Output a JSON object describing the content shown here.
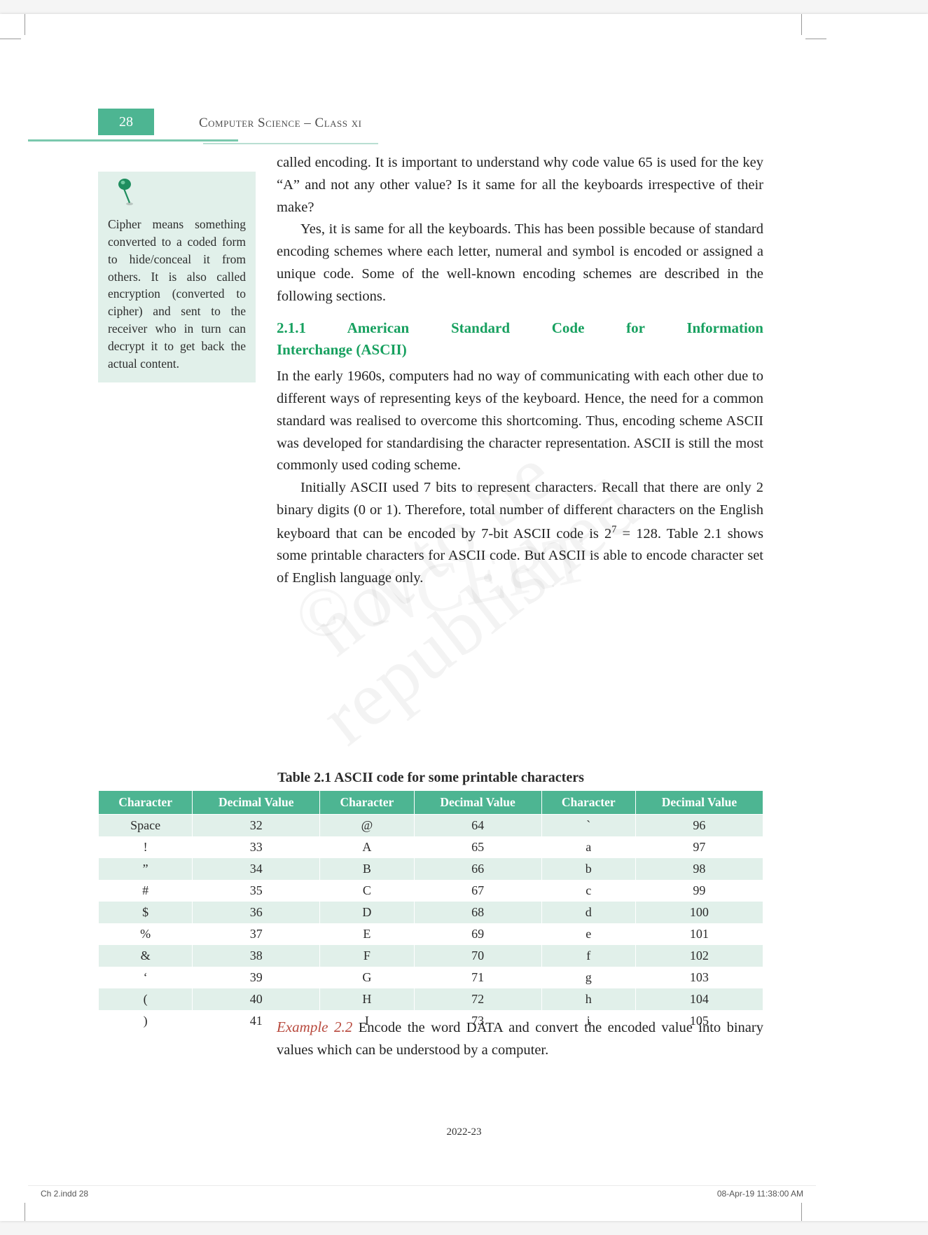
{
  "header": {
    "page_number": "28",
    "running_title": "Computer Science – Class xi"
  },
  "sidebar": {
    "text": "Cipher means something converted to a coded form to hide/conceal it from others. It is also called encryption (converted to cipher) and sent to the receiver who in turn can decrypt it to get back the actual content."
  },
  "paragraphs": {
    "p1": "called encoding. It is important to understand why code value 65 is used for the key “A” and not any other value? Is it same for all the keyboards irrespective of their make?",
    "p2": "Yes, it is same for all the keyboards. This has been possible because of standard encoding schemes where each letter, numeral and symbol is encoded or assigned a unique code. Some of the well-known encoding schemes are described in the following sections.",
    "section_heading_line1": "2.1.1 American Standard Code for Information",
    "section_heading_line2": "Interchange (ASCII)",
    "p3": "In the early 1960s, computers had no way of communicating with each other due to different ways of representing keys of the keyboard. Hence, the need for a common standard was realised to overcome this shortcoming. Thus, encoding scheme ASCII was developed for standardising the character representation. ASCII is still the most commonly used coding scheme.",
    "p4_a": "Initially ASCII used 7 bits to represent characters. Recall that there are only 2 binary digits (0 or 1). Therefore, total number of different characters on the English keyboard that can be encoded by 7-bit ASCII code is 2",
    "p4_sup": "7",
    "p4_b": " = 128. Table 2.1 shows some printable characters for ASCII code. But ASCII is able to encode character set of English language only.",
    "table_caption": "Table 2.1  ASCII code for some printable characters"
  },
  "ascii_table": {
    "headers": [
      "Character",
      "Decimal Value",
      "Character",
      "Decimal Value",
      "Character",
      "Decimal Value"
    ],
    "rows": [
      [
        "Space",
        "32",
        "@",
        "64",
        "`",
        "96"
      ],
      [
        "!",
        "33",
        "A",
        "65",
        "a",
        "97"
      ],
      [
        "”",
        "34",
        "B",
        "66",
        "b",
        "98"
      ],
      [
        "#",
        "35",
        "C",
        "67",
        "c",
        "99"
      ],
      [
        "$",
        "36",
        "D",
        "68",
        "d",
        "100"
      ],
      [
        "%",
        "37",
        "E",
        "69",
        "e",
        "101"
      ],
      [
        "&",
        "38",
        "F",
        "70",
        "f",
        "102"
      ],
      [
        "‘",
        "39",
        "G",
        "71",
        "g",
        "103"
      ],
      [
        "(",
        "40",
        "H",
        "72",
        "h",
        "104"
      ],
      [
        ")",
        "41",
        "I",
        "73",
        "i",
        "105"
      ]
    ],
    "header_bg": "#4db592",
    "header_fg": "#ffffff",
    "row_even_bg": "#e1f0ea",
    "row_odd_bg": "#ffffff"
  },
  "example": {
    "label": "Example 2.2",
    "text": " Encode the word DATA and convert the encoded value into binary values which can be understood by a computer."
  },
  "footer": {
    "year": "2022-23",
    "left": "Ch 2.indd   28",
    "right": "08-Apr-19   11:38:00 AM"
  },
  "watermarks": {
    "w1": "not to be republished",
    "w2": "© NCERT"
  },
  "colors": {
    "accent": "#4db592",
    "accent_light": "#e1f0ea",
    "heading_green": "#17a05f",
    "example_red": "#b84a3e"
  }
}
